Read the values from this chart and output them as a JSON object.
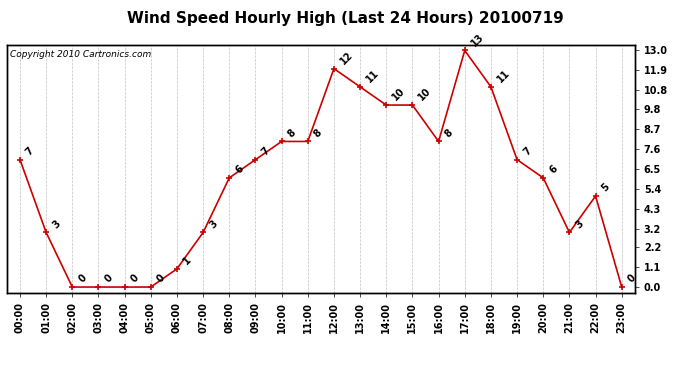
{
  "title": "Wind Speed Hourly High (Last 24 Hours) 20100719",
  "copyright": "Copyright 2010 Cartronics.com",
  "hours": [
    "00:00",
    "01:00",
    "02:00",
    "03:00",
    "04:00",
    "05:00",
    "06:00",
    "07:00",
    "08:00",
    "09:00",
    "10:00",
    "11:00",
    "12:00",
    "13:00",
    "14:00",
    "15:00",
    "16:00",
    "17:00",
    "18:00",
    "19:00",
    "20:00",
    "21:00",
    "22:00",
    "23:00"
  ],
  "values": [
    7,
    3,
    0,
    0,
    0,
    0,
    1,
    3,
    6,
    7,
    8,
    8,
    12,
    11,
    10,
    10,
    8,
    13,
    11,
    7,
    6,
    3,
    5,
    0
  ],
  "ylim": [
    0,
    13.0
  ],
  "yticks": [
    0.0,
    1.1,
    2.2,
    3.2,
    4.3,
    5.4,
    6.5,
    7.6,
    8.7,
    9.8,
    10.8,
    11.9,
    13.0
  ],
  "line_color": "#cc0000",
  "marker_color": "#cc0000",
  "bg_color": "#ffffff",
  "grid_color": "#bbbbbb",
  "title_fontsize": 11,
  "label_fontsize": 7,
  "annotation_fontsize": 7,
  "copyright_fontsize": 6.5
}
